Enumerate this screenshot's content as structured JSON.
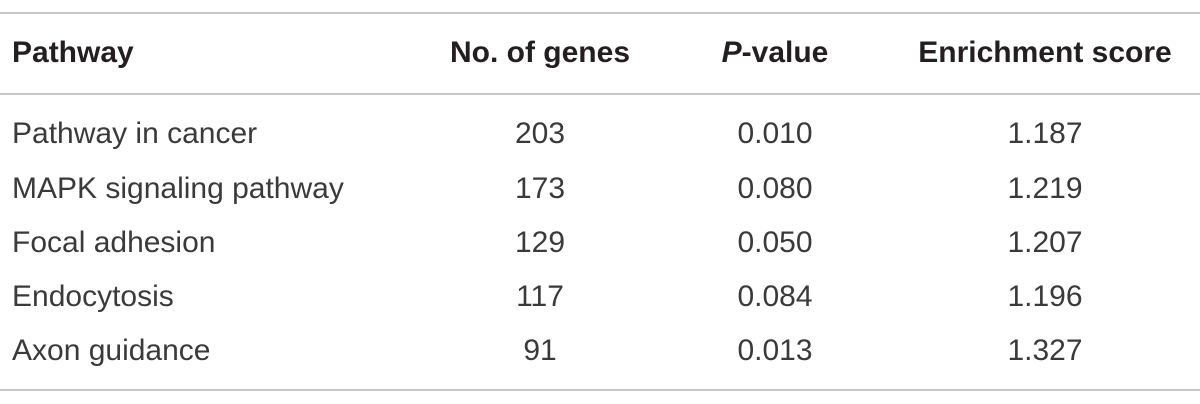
{
  "table": {
    "headers": {
      "pathway": "Pathway",
      "genes": "No. of genes",
      "pvalue_italic": "P",
      "pvalue_rest": "-value",
      "enrichment": "Enrichment score"
    },
    "rows": [
      {
        "pathway": "Pathway in cancer",
        "genes": "203",
        "pvalue": "0.010",
        "enrichment": "1.187"
      },
      {
        "pathway": "MAPK signaling pathway",
        "genes": "173",
        "pvalue": "0.080",
        "enrichment": "1.219"
      },
      {
        "pathway": "Focal adhesion",
        "genes": "129",
        "pvalue": "0.050",
        "enrichment": "1.207"
      },
      {
        "pathway": "Endocytosis",
        "genes": "117",
        "pvalue": "0.084",
        "enrichment": "1.196"
      },
      {
        "pathway": "Axon guidance",
        "genes": "91",
        "pvalue": "0.013",
        "enrichment": "1.327"
      }
    ]
  }
}
